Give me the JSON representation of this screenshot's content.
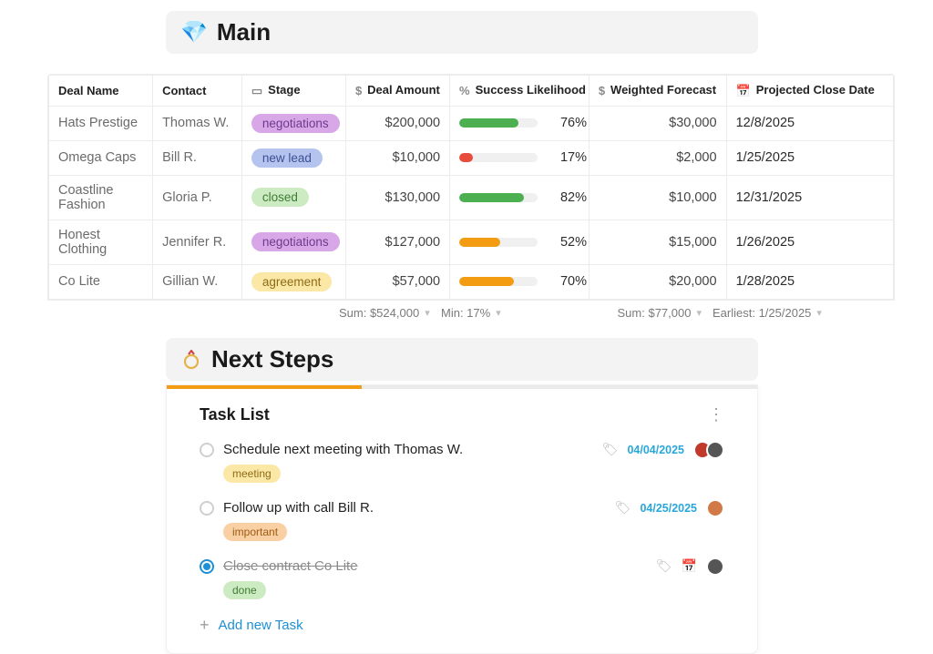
{
  "main_section": {
    "emoji": "💎",
    "title": "Main"
  },
  "columns": {
    "deal_name": "Deal Name",
    "contact": "Contact",
    "stage": "Stage",
    "deal_amount": "Deal Amount",
    "success": "Success Likelihood",
    "forecast": "Weighted Forecast",
    "close_date": "Projected Close Date",
    "widths": [
      112,
      96,
      112,
      112,
      150,
      148,
      180
    ]
  },
  "stage_colors": {
    "negotiations": {
      "bg": "#d8a7e8",
      "fg": "#6d3b8a"
    },
    "new lead": {
      "bg": "#b5c4ee",
      "fg": "#3d4f94"
    },
    "closed": {
      "bg": "#cdebc3",
      "fg": "#3f7a34"
    },
    "agreement": {
      "bg": "#fbe8a6",
      "fg": "#8f6b15"
    }
  },
  "rows": [
    {
      "deal": "Hats Prestige",
      "contact": "Thomas W.",
      "stage": "negotiations",
      "amount": "$200,000",
      "likelihood": 76,
      "bar_color": "#4caf50",
      "forecast": "$30,000",
      "close": "12/8/2025"
    },
    {
      "deal": "Omega Caps",
      "contact": "Bill R.",
      "stage": "new lead",
      "amount": "$10,000",
      "likelihood": 17,
      "bar_color": "#e74c3c",
      "forecast": "$2,000",
      "close": "1/25/2025"
    },
    {
      "deal": "Coastline Fashion",
      "contact": "Gloria P.",
      "stage": "closed",
      "amount": "$130,000",
      "likelihood": 82,
      "bar_color": "#4caf50",
      "forecast": "$10,000",
      "close": "12/31/2025"
    },
    {
      "deal": "Honest Clothing",
      "contact": "Jennifer R.",
      "stage": "negotiations",
      "amount": "$127,000",
      "likelihood": 52,
      "bar_color": "#f39c12",
      "forecast": "$15,000",
      "close": "1/26/2025"
    },
    {
      "deal": "Co Lite",
      "contact": "Gillian W.",
      "stage": "agreement",
      "amount": "$57,000",
      "likelihood": 70,
      "bar_color": "#f39c12",
      "forecast": "$20,000",
      "close": "1/28/2025"
    }
  ],
  "summaries": {
    "amount": "Sum: $524,000",
    "likelihood": "Min: 17%",
    "forecast": "Sum: $77,000",
    "close": "Earliest: 1/25/2025"
  },
  "next_section": {
    "emoji": "ring",
    "title": "Next Steps"
  },
  "tasks_card": {
    "title": "Task List",
    "progress_pct": 33,
    "add_label": "Add new Task",
    "tag_colors": {
      "meeting": {
        "bg": "#fbe8a6",
        "fg": "#8f6b15"
      },
      "important": {
        "bg": "#f9d0a4",
        "fg": "#a05a12"
      },
      "done": {
        "bg": "#cdebc3",
        "fg": "#3f7a34"
      }
    },
    "items": [
      {
        "text": "Schedule next meeting with Thomas W.",
        "checked": false,
        "tag": "meeting",
        "due": "04/04/2025",
        "avatars": [
          "#c0392b",
          "#555555"
        ]
      },
      {
        "text": "Follow up with call Bill R.",
        "checked": false,
        "tag": "important",
        "due": "04/25/2025",
        "avatars": [
          "#d17a47"
        ]
      },
      {
        "text": "Close contract Co Lite",
        "checked": true,
        "tag": "done",
        "due": null,
        "avatars": [
          "#555555"
        ]
      }
    ]
  }
}
